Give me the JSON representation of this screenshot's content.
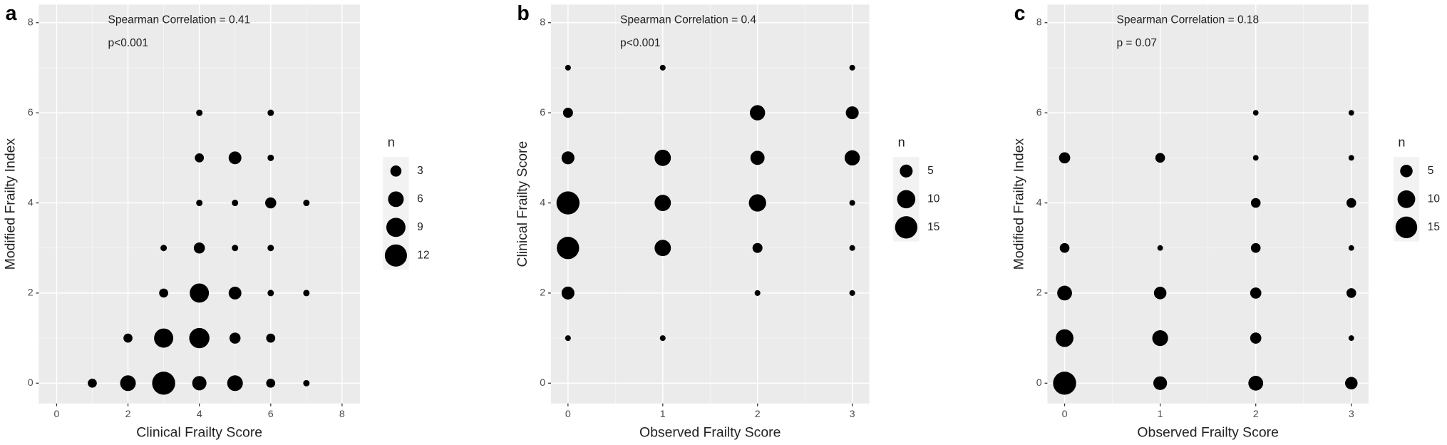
{
  "chart_data": [
    {
      "type": "scatter",
      "panel_label": "a",
      "annotations": [
        "Spearman Correlation =  0.41",
        "p<0.001"
      ],
      "x_label": "Clinical Frailty Score",
      "y_label": "Modified Frailty Index",
      "x": [
        1,
        2,
        3,
        4,
        5,
        6,
        7,
        2,
        3,
        4,
        5,
        6,
        3,
        4,
        5,
        6,
        7,
        3,
        4,
        5,
        6,
        4,
        5,
        6,
        7,
        4,
        5,
        6,
        4,
        6
      ],
      "y": [
        0,
        0,
        0,
        0,
        0,
        0,
        0,
        1,
        1,
        1,
        1,
        1,
        2,
        2,
        2,
        2,
        2,
        3,
        3,
        3,
        3,
        4,
        4,
        4,
        4,
        5,
        5,
        5,
        6,
        6
      ],
      "sizes": [
        2,
        6,
        13,
        5,
        6,
        2,
        1,
        2,
        9,
        10,
        3,
        2,
        2,
        9,
        4,
        1,
        1,
        1,
        3,
        1,
        1,
        1,
        1,
        3,
        1,
        2,
        4,
        1,
        1,
        1
      ],
      "xlim": [
        -0.5,
        8.5
      ],
      "ylim": [
        -0.45,
        8.4
      ],
      "xticks": [
        0,
        2,
        4,
        6,
        8
      ],
      "yticks": [
        0,
        2,
        4,
        6,
        8
      ],
      "legend": {
        "title": "n",
        "sizes": [
          3,
          6,
          9,
          12
        ]
      },
      "color": "#000000",
      "annotation_color": "#0000ff"
    },
    {
      "type": "scatter",
      "panel_label": "b",
      "annotations": [
        "Spearman Correlation =  0.4",
        "p<0.001"
      ],
      "x_label": "Observed Frailty Score",
      "y_label": "Clinical Frailty Score",
      "x": [
        0,
        0,
        0,
        0,
        0,
        0,
        0,
        1,
        1,
        1,
        1,
        1,
        2,
        2,
        2,
        2,
        2,
        3,
        3,
        3,
        3,
        3,
        3
      ],
      "y": [
        1,
        2,
        3,
        4,
        5,
        6,
        7,
        1,
        3,
        4,
        5,
        7,
        2,
        3,
        4,
        5,
        6,
        2,
        3,
        4,
        5,
        6,
        7
      ],
      "sizes": [
        1,
        5,
        15,
        16,
        5,
        3,
        1,
        1,
        8,
        8,
        8,
        1,
        1,
        3,
        9,
        6,
        7,
        1,
        1,
        1,
        7,
        5,
        1
      ],
      "xlim": [
        -0.18,
        3.18
      ],
      "ylim": [
        -0.45,
        8.4
      ],
      "xticks": [
        0,
        1,
        2,
        3
      ],
      "yticks": [
        0,
        2,
        4,
        6,
        8
      ],
      "legend": {
        "title": "n",
        "sizes": [
          5,
          10,
          15
        ]
      },
      "color": "#000000",
      "annotation_color": "#0000ff"
    },
    {
      "type": "scatter",
      "panel_label": "c",
      "annotations": [
        "Spearman Correlation =  0.18",
        "p =  0.07"
      ],
      "x_label": "Observed Frailty Score",
      "y_label": "Modified Frailty Index",
      "x": [
        0,
        0,
        0,
        0,
        0,
        1,
        1,
        1,
        1,
        1,
        2,
        2,
        2,
        2,
        2,
        2,
        2,
        3,
        3,
        3,
        3,
        3,
        3,
        3
      ],
      "y": [
        0,
        1,
        2,
        3,
        5,
        0,
        1,
        2,
        3,
        5,
        0,
        1,
        2,
        3,
        4,
        5,
        6,
        0,
        1,
        2,
        3,
        4,
        5,
        6
      ],
      "sizes": [
        17,
        10,
        7,
        3,
        4,
        6,
        8,
        5,
        1,
        3,
        7,
        4,
        4,
        3,
        3,
        1,
        1,
        5,
        1,
        3,
        1,
        3,
        1,
        1
      ],
      "xlim": [
        -0.18,
        3.18
      ],
      "ylim": [
        -0.45,
        8.4
      ],
      "xticks": [
        0,
        1,
        2,
        3
      ],
      "yticks": [
        0,
        2,
        4,
        6,
        8
      ],
      "legend": {
        "title": "n",
        "sizes": [
          5,
          10,
          15
        ]
      },
      "color": "#000000",
      "annotation_color": "#0000ff"
    }
  ]
}
